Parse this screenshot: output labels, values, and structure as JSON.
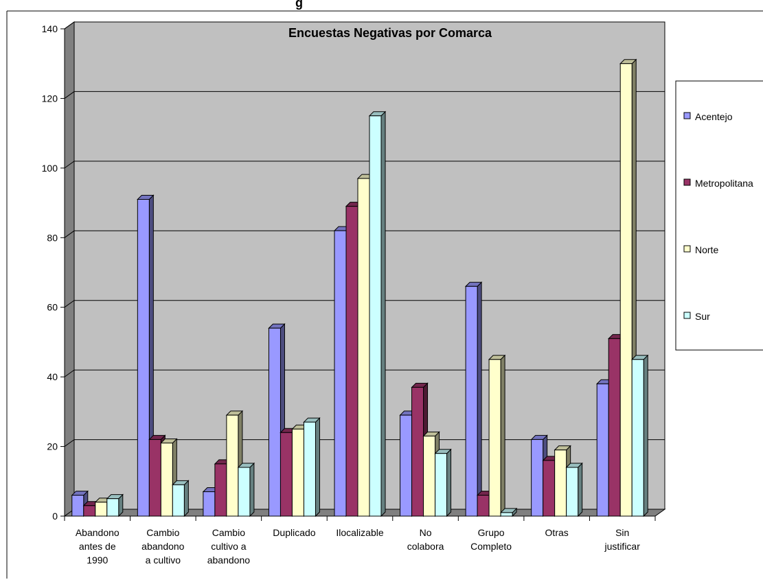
{
  "header": {
    "top_text": "g"
  },
  "chart_data": {
    "type": "bar",
    "title": "Encuestas Negativas por Comarca",
    "xlabel": "",
    "ylabel": "",
    "ylim": [
      0,
      140
    ],
    "yticks": [
      0,
      20,
      40,
      60,
      80,
      100,
      120,
      140
    ],
    "grid": true,
    "legend_position": "right",
    "categories": [
      [
        "Abandono",
        "antes de",
        "1990"
      ],
      [
        "Cambio",
        "abandono",
        "a cultivo"
      ],
      [
        "Cambio",
        "cultivo a",
        "abandono"
      ],
      [
        "Duplicado"
      ],
      [
        "Ilocalizable"
      ],
      [
        "No",
        "colabora"
      ],
      [
        "Grupo",
        "Completo"
      ],
      [
        "Otras"
      ],
      [
        "Sin",
        "justificar"
      ]
    ],
    "series": [
      {
        "name": "Acentejo",
        "color": "#9999ff",
        "values": [
          6,
          91,
          7,
          54,
          82,
          29,
          66,
          22,
          38
        ]
      },
      {
        "name": "Metropolitana",
        "color": "#993366",
        "values": [
          3,
          22,
          15,
          24,
          89,
          37,
          6,
          16,
          51
        ]
      },
      {
        "name": "Norte",
        "color": "#ffffcc",
        "values": [
          4,
          21,
          29,
          25,
          97,
          23,
          45,
          19,
          130
        ]
      },
      {
        "name": "Sur",
        "color": "#ccffff",
        "values": [
          5,
          9,
          14,
          27,
          115,
          18,
          1,
          14,
          45
        ]
      }
    ],
    "colors": {
      "plot_background": "#c0c0c0",
      "wall_side": "#808080",
      "gridline": "#000000"
    }
  }
}
